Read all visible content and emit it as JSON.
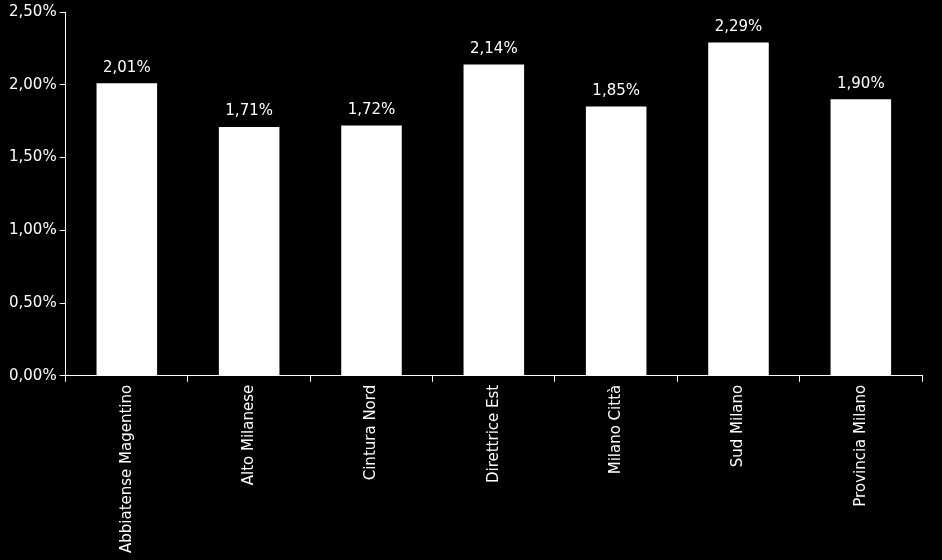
{
  "chart_data": {
    "type": "bar",
    "categories": [
      "Abbiatense Magentino",
      "Alto Milanese",
      "Cintura Nord",
      "Direttrice Est",
      "Milano Città",
      "Sud Milano",
      "Provincia Milano"
    ],
    "values": [
      2.01,
      1.71,
      1.72,
      2.14,
      1.85,
      2.29,
      1.9
    ],
    "value_labels": [
      "2,01%",
      "1,71%",
      "1,72%",
      "2,14%",
      "1,85%",
      "2,29%",
      "1,90%"
    ],
    "color": "#ffffff",
    "ylim": [
      0,
      2.5
    ],
    "yticks": [
      {
        "value": 0,
        "label": "0,00%"
      },
      {
        "value": 0.5,
        "label": "0,50%"
      },
      {
        "value": 1,
        "label": "1,00%"
      },
      {
        "value": 1.5,
        "label": "1,50%"
      },
      {
        "value": 2,
        "label": "2,00%"
      },
      {
        "value": 2.5,
        "label": "2,50%"
      }
    ],
    "grid": false,
    "data_labels": true
  }
}
